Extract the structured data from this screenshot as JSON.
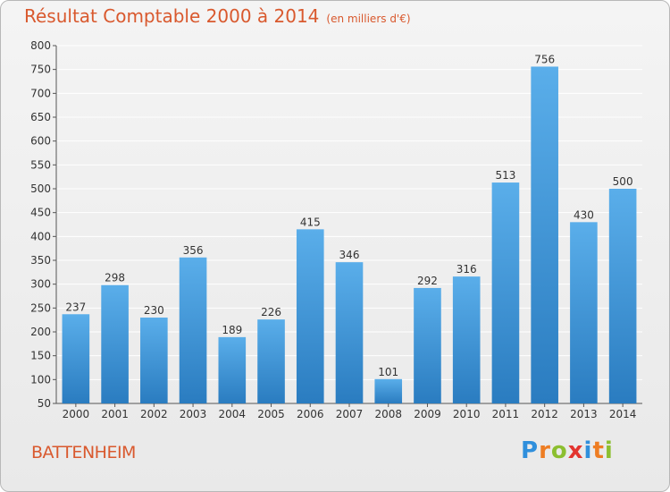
{
  "header": {
    "title": "Résultat Comptable 2000 à 2014",
    "unit": "(en milliers d'€)"
  },
  "footer": {
    "town": "BATTENHEIM",
    "logo_letters": [
      "P",
      "r",
      "o",
      "x",
      "i",
      "t",
      "i"
    ],
    "logo_colors": [
      "#2f8fdc",
      "#ee7d23",
      "#8cbf30",
      "#e3342f",
      "#2f8fdc",
      "#ee7d23",
      "#8cbf30"
    ]
  },
  "chart_data": {
    "type": "bar",
    "categories": [
      "2000",
      "2001",
      "2002",
      "2003",
      "2004",
      "2005",
      "2006",
      "2007",
      "2008",
      "2009",
      "2010",
      "2011",
      "2012",
      "2013",
      "2014"
    ],
    "values": [
      237,
      298,
      230,
      356,
      189,
      226,
      415,
      346,
      101,
      292,
      316,
      513,
      756,
      430,
      500
    ],
    "title": "Résultat Comptable 2000 à 2014",
    "ylim": [
      50,
      800
    ],
    "yticks": [
      50,
      100,
      150,
      200,
      250,
      300,
      350,
      400,
      450,
      500,
      550,
      600,
      650,
      700,
      750,
      800
    ],
    "grid": true,
    "colors": {
      "bar_top": "#5aaeea",
      "bar_bottom": "#2a7cc0",
      "grid": "#ffffff",
      "text": "#333333"
    }
  }
}
